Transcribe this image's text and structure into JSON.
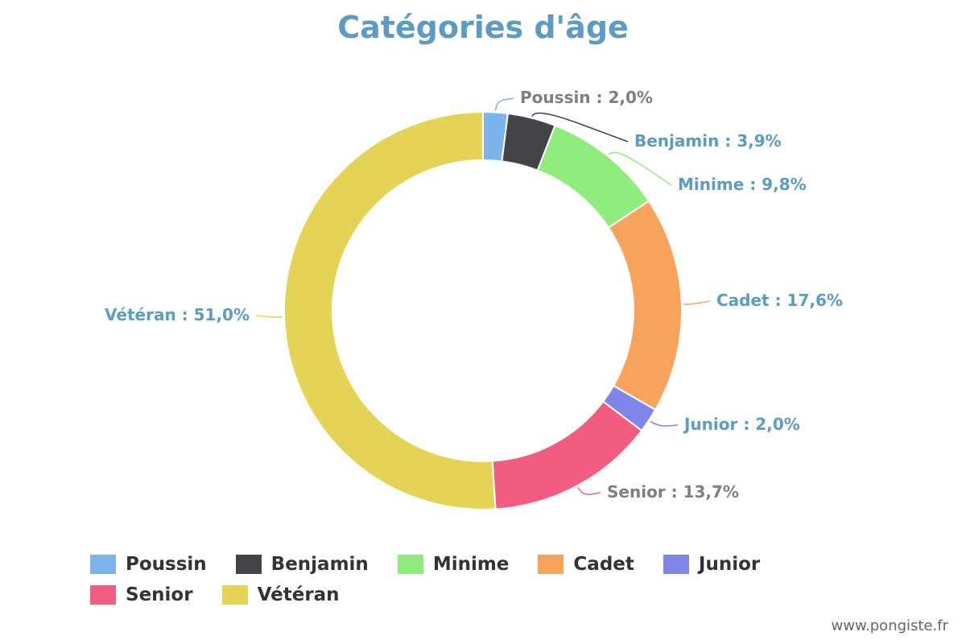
{
  "title": "Catégories d'âge",
  "watermark": "www.pongiste.fr",
  "chart_data": {
    "type": "pie",
    "donut": true,
    "title": "Catégories d'âge",
    "legend_placement": "bottom",
    "slices": [
      {
        "name": "Poussin",
        "value": 2.0,
        "label": "Poussin : 2,0%",
        "color": "#7cb5ec",
        "label_color": "#7f7f7f"
      },
      {
        "name": "Benjamin",
        "value": 3.9,
        "label": "Benjamin : 3,9%",
        "color": "#434348",
        "label_color": "#5b9bc4"
      },
      {
        "name": "Minime",
        "value": 9.8,
        "label": "Minime : 9,8%",
        "color": "#90ed7d",
        "label_color": "#5b9bc4"
      },
      {
        "name": "Cadet",
        "value": 17.6,
        "label": "Cadet : 17,6%",
        "color": "#f7a35c",
        "label_color": "#5b9bc4"
      },
      {
        "name": "Junior",
        "value": 2.0,
        "label": "Junior : 2,0%",
        "color": "#8085e9",
        "label_color": "#5b9bc4"
      },
      {
        "name": "Senior",
        "value": 13.7,
        "label": "Senior : 13,7%",
        "color": "#f15c80",
        "label_color": "#7f7f7f"
      },
      {
        "name": "Vétéran",
        "value": 51.0,
        "label": "Vétéran : 51,0%",
        "color": "#e4d354",
        "label_color": "#5b9bc4"
      }
    ]
  }
}
